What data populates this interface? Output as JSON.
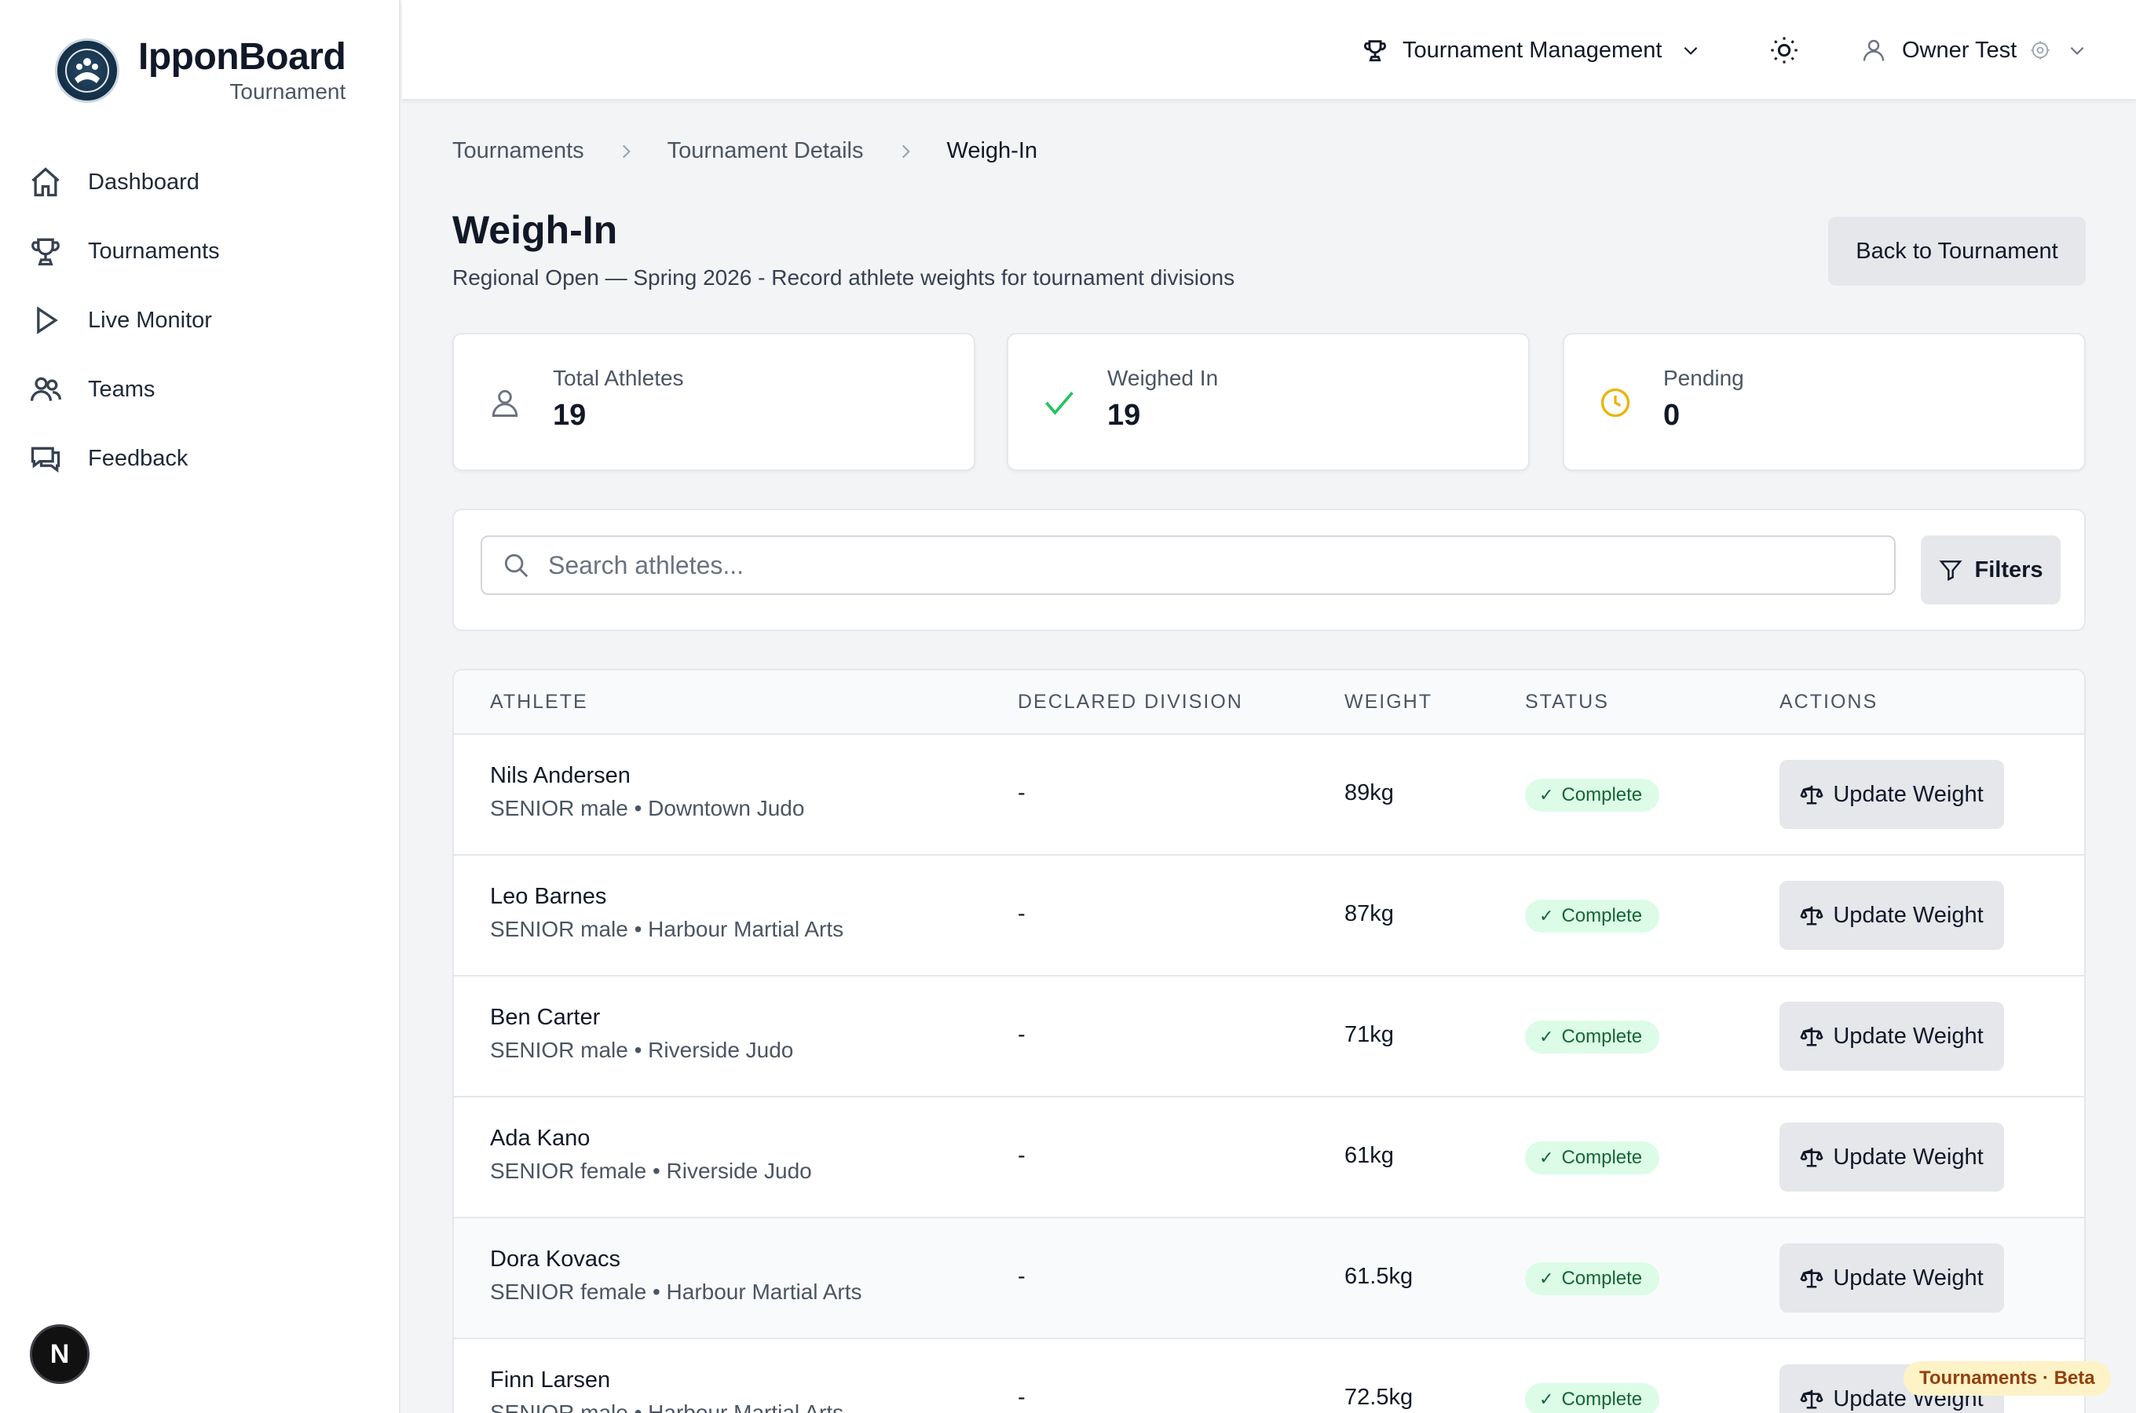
{
  "brand": {
    "name": "IpponBoard",
    "subtitle": "Tournament"
  },
  "sidebar": {
    "items": [
      {
        "label": "Dashboard",
        "icon": "home-icon"
      },
      {
        "label": "Tournaments",
        "icon": "trophy-icon"
      },
      {
        "label": "Live Monitor",
        "icon": "play-icon"
      },
      {
        "label": "Teams",
        "icon": "users-icon"
      },
      {
        "label": "Feedback",
        "icon": "chat-icon"
      }
    ],
    "bottom_badge": "N"
  },
  "header": {
    "menu_label": "Tournament Management",
    "user_name": "Owner Test"
  },
  "breadcrumb": [
    "Tournaments",
    "Tournament Details",
    "Weigh-In"
  ],
  "page": {
    "title": "Weigh-In",
    "subtitle": "Regional Open — Spring 2026 - Record athlete weights for tournament divisions",
    "back_label": "Back to Tournament"
  },
  "stats": [
    {
      "label": "Total Athletes",
      "value": "19",
      "icon": "user-icon",
      "color": "#6b7280"
    },
    {
      "label": "Weighed In",
      "value": "19",
      "icon": "check-icon",
      "color": "#22c55e"
    },
    {
      "label": "Pending",
      "value": "0",
      "icon": "clock-icon",
      "color": "#eab308"
    }
  ],
  "search": {
    "placeholder": "Search athletes...",
    "filters_label": "Filters"
  },
  "table": {
    "columns": [
      "ATHLETE",
      "DECLARED DIVISION",
      "WEIGHT",
      "STATUS",
      "ACTIONS"
    ],
    "action_label": "Update Weight",
    "rows": [
      {
        "name": "Nils Andersen",
        "meta": "SENIOR male • Downtown Judo",
        "division": "-",
        "weight": "89kg",
        "status": "Complete"
      },
      {
        "name": "Leo Barnes",
        "meta": "SENIOR male • Harbour Martial Arts",
        "division": "-",
        "weight": "87kg",
        "status": "Complete"
      },
      {
        "name": "Ben Carter",
        "meta": "SENIOR male • Riverside Judo",
        "division": "-",
        "weight": "71kg",
        "status": "Complete"
      },
      {
        "name": "Ada Kano",
        "meta": "SENIOR female • Riverside Judo",
        "division": "-",
        "weight": "61kg",
        "status": "Complete"
      },
      {
        "name": "Dora Kovacs",
        "meta": "SENIOR female • Harbour Martial Arts",
        "division": "-",
        "weight": "61.5kg",
        "status": "Complete"
      },
      {
        "name": "Finn Larsen",
        "meta": "SENIOR male • Harbour Martial Arts",
        "division": "-",
        "weight": "72.5kg",
        "status": "Complete"
      }
    ]
  },
  "footer_badge": "Tournaments · Beta"
}
